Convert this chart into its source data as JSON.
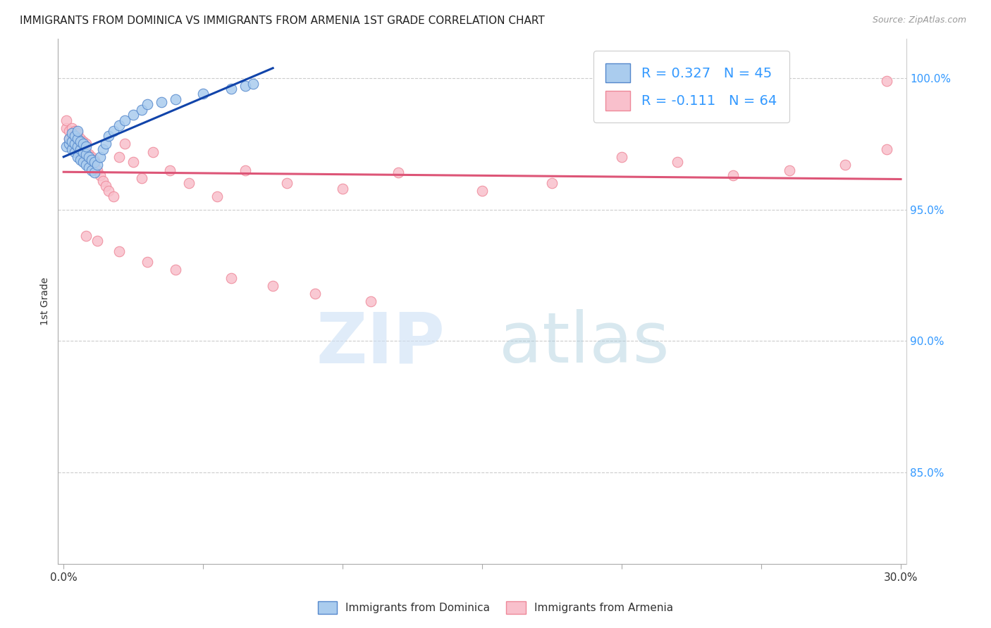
{
  "title": "IMMIGRANTS FROM DOMINICA VS IMMIGRANTS FROM ARMENIA 1ST GRADE CORRELATION CHART",
  "source": "Source: ZipAtlas.com",
  "ylabel": "1st Grade",
  "ytick_labels": [
    "100.0%",
    "95.0%",
    "90.0%",
    "85.0%"
  ],
  "ytick_positions": [
    1.0,
    0.95,
    0.9,
    0.85
  ],
  "xlim": [
    0.0,
    0.3
  ],
  "ylim": [
    0.815,
    1.015
  ],
  "dominica_color": "#aaccee",
  "dominica_edge": "#5588cc",
  "armenia_color": "#f9c0cc",
  "armenia_edge": "#ee8899",
  "line_dominica_color": "#1144aa",
  "line_armenia_color": "#dd5577",
  "watermark_zip": "ZIP",
  "watermark_atlas": "atlas",
  "legend_label1": "R = 0.327   N = 45",
  "legend_label2": "R = -0.111   N = 64",
  "dominica_x": [
    0.001,
    0.002,
    0.002,
    0.003,
    0.003,
    0.003,
    0.004,
    0.004,
    0.004,
    0.005,
    0.005,
    0.005,
    0.005,
    0.006,
    0.006,
    0.006,
    0.007,
    0.007,
    0.007,
    0.008,
    0.008,
    0.008,
    0.009,
    0.009,
    0.01,
    0.01,
    0.011,
    0.011,
    0.012,
    0.013,
    0.014,
    0.015,
    0.016,
    0.018,
    0.02,
    0.022,
    0.025,
    0.028,
    0.03,
    0.035,
    0.04,
    0.05,
    0.06,
    0.065,
    0.068
  ],
  "dominica_y": [
    0.974,
    0.975,
    0.977,
    0.973,
    0.976,
    0.979,
    0.972,
    0.975,
    0.978,
    0.97,
    0.974,
    0.977,
    0.98,
    0.969,
    0.973,
    0.976,
    0.968,
    0.972,
    0.975,
    0.967,
    0.971,
    0.974,
    0.966,
    0.97,
    0.965,
    0.969,
    0.964,
    0.968,
    0.967,
    0.97,
    0.973,
    0.975,
    0.978,
    0.98,
    0.982,
    0.984,
    0.986,
    0.988,
    0.99,
    0.991,
    0.992,
    0.994,
    0.996,
    0.997,
    0.998
  ],
  "armenia_x": [
    0.001,
    0.001,
    0.002,
    0.002,
    0.003,
    0.003,
    0.003,
    0.004,
    0.004,
    0.004,
    0.005,
    0.005,
    0.005,
    0.006,
    0.006,
    0.006,
    0.007,
    0.007,
    0.007,
    0.008,
    0.008,
    0.008,
    0.009,
    0.009,
    0.01,
    0.01,
    0.011,
    0.011,
    0.012,
    0.013,
    0.014,
    0.015,
    0.016,
    0.018,
    0.02,
    0.022,
    0.025,
    0.028,
    0.032,
    0.038,
    0.045,
    0.055,
    0.065,
    0.08,
    0.1,
    0.12,
    0.15,
    0.175,
    0.2,
    0.22,
    0.24,
    0.26,
    0.28,
    0.295,
    0.008,
    0.012,
    0.02,
    0.03,
    0.04,
    0.06,
    0.075,
    0.09,
    0.11,
    0.295
  ],
  "armenia_y": [
    0.981,
    0.984,
    0.977,
    0.98,
    0.975,
    0.978,
    0.981,
    0.973,
    0.977,
    0.98,
    0.972,
    0.976,
    0.979,
    0.971,
    0.974,
    0.977,
    0.97,
    0.973,
    0.976,
    0.969,
    0.972,
    0.975,
    0.968,
    0.971,
    0.967,
    0.97,
    0.966,
    0.969,
    0.965,
    0.963,
    0.961,
    0.959,
    0.957,
    0.955,
    0.97,
    0.975,
    0.968,
    0.962,
    0.972,
    0.965,
    0.96,
    0.955,
    0.965,
    0.96,
    0.958,
    0.964,
    0.957,
    0.96,
    0.97,
    0.968,
    0.963,
    0.965,
    0.967,
    0.999,
    0.94,
    0.938,
    0.934,
    0.93,
    0.927,
    0.924,
    0.921,
    0.918,
    0.915,
    0.973
  ]
}
